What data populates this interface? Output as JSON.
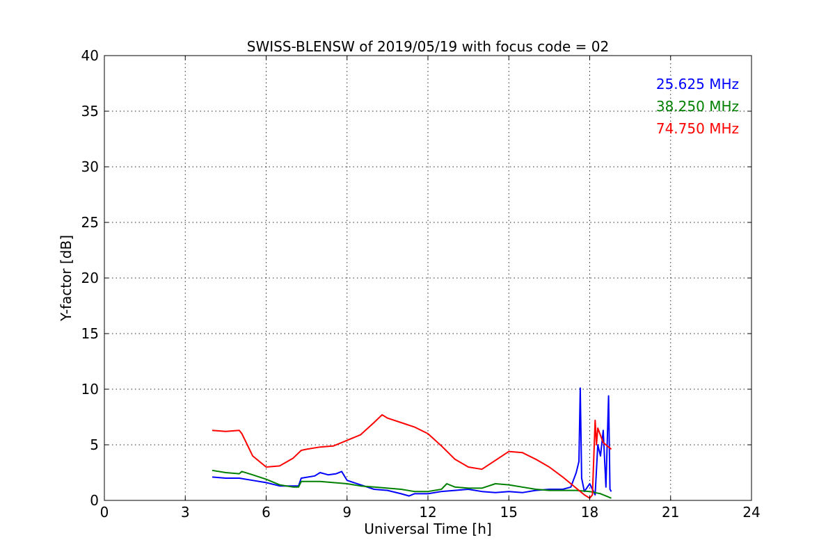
{
  "chart_data": {
    "type": "line",
    "title": "SWISS-BLENSW of 2019/05/19 with focus code = 02",
    "xlabel": "Universal Time [h]",
    "ylabel": "Y-factor [dB]",
    "xlim": [
      0,
      24
    ],
    "ylim": [
      0,
      40
    ],
    "xticks": [
      0,
      3,
      6,
      9,
      12,
      15,
      18,
      21,
      24
    ],
    "yticks": [
      0,
      5,
      10,
      15,
      20,
      25,
      30,
      35,
      40
    ],
    "xtick_labels": [
      "0",
      "3",
      "6",
      "9",
      "12",
      "15",
      "18",
      "21",
      "24"
    ],
    "ytick_labels": [
      "0",
      "5",
      "10",
      "15",
      "20",
      "25",
      "30",
      "35",
      "40"
    ],
    "grid": true,
    "legend_position": "top-right",
    "series": [
      {
        "name": "25.625 MHz",
        "color": "#0000ff",
        "x": [
          4.0,
          4.5,
          5.0,
          5.5,
          6.0,
          6.5,
          7.0,
          7.2,
          7.3,
          7.8,
          8.0,
          8.3,
          8.6,
          8.8,
          9.0,
          9.5,
          10.0,
          10.5,
          11.0,
          11.3,
          11.5,
          12.0,
          12.5,
          13.0,
          13.5,
          14.0,
          14.5,
          15.0,
          15.5,
          16.0,
          16.5,
          17.0,
          17.3,
          17.5,
          17.6,
          17.65,
          17.7,
          17.8,
          18.0,
          18.1,
          18.2,
          18.3,
          18.4,
          18.5,
          18.6,
          18.7,
          18.75,
          18.8
        ],
        "values": [
          2.1,
          2.0,
          2.0,
          1.8,
          1.6,
          1.3,
          1.3,
          1.3,
          2.0,
          2.2,
          2.5,
          2.3,
          2.4,
          2.6,
          1.8,
          1.4,
          1.0,
          0.9,
          0.6,
          0.4,
          0.6,
          0.6,
          0.8,
          0.9,
          1.0,
          0.8,
          0.7,
          0.8,
          0.7,
          0.9,
          1.0,
          1.0,
          1.2,
          2.5,
          3.5,
          10.1,
          2.0,
          0.8,
          1.5,
          1.0,
          0.5,
          5.0,
          4.0,
          6.3,
          1.2,
          9.4,
          1.0,
          0.8
        ]
      },
      {
        "name": "38.250 MHz",
        "color": "#008000",
        "x": [
          4.0,
          4.5,
          5.0,
          5.1,
          5.5,
          6.0,
          6.5,
          7.0,
          7.2,
          7.3,
          7.5,
          8.0,
          8.5,
          9.0,
          9.5,
          10.0,
          10.5,
          11.0,
          11.5,
          12.0,
          12.5,
          12.7,
          13.0,
          13.5,
          14.0,
          14.5,
          15.0,
          15.5,
          16.0,
          16.5,
          17.0,
          17.5,
          18.0,
          18.2,
          18.4,
          18.6,
          18.8
        ],
        "values": [
          2.7,
          2.5,
          2.4,
          2.6,
          2.3,
          1.9,
          1.4,
          1.2,
          1.2,
          1.7,
          1.7,
          1.7,
          1.6,
          1.5,
          1.3,
          1.2,
          1.1,
          1.0,
          0.8,
          0.8,
          1.0,
          1.5,
          1.2,
          1.1,
          1.1,
          1.5,
          1.4,
          1.2,
          1.0,
          0.9,
          0.9,
          0.9,
          0.8,
          0.7,
          0.6,
          0.4,
          0.2
        ]
      },
      {
        "name": "74.750 MHz",
        "color": "#ff0000",
        "x": [
          4.0,
          4.5,
          5.0,
          5.1,
          5.3,
          5.5,
          6.0,
          6.5,
          7.0,
          7.3,
          7.5,
          8.0,
          8.5,
          9.0,
          9.5,
          10.0,
          10.3,
          10.5,
          11.0,
          11.5,
          12.0,
          12.5,
          13.0,
          13.5,
          14.0,
          14.5,
          15.0,
          15.5,
          16.0,
          16.5,
          17.0,
          17.5,
          17.8,
          18.0,
          18.1,
          18.2,
          18.25,
          18.3,
          18.5,
          18.8
        ],
        "values": [
          6.3,
          6.2,
          6.3,
          6.0,
          5.0,
          4.0,
          3.0,
          3.1,
          3.8,
          4.5,
          4.6,
          4.8,
          4.9,
          5.4,
          5.9,
          7.0,
          7.7,
          7.4,
          7.0,
          6.6,
          6.0,
          4.9,
          3.7,
          3.0,
          2.8,
          3.6,
          4.4,
          4.3,
          3.7,
          3.0,
          2.1,
          1.1,
          0.5,
          0.2,
          0.5,
          7.2,
          5.0,
          6.5,
          5.2,
          4.6
        ]
      }
    ]
  }
}
